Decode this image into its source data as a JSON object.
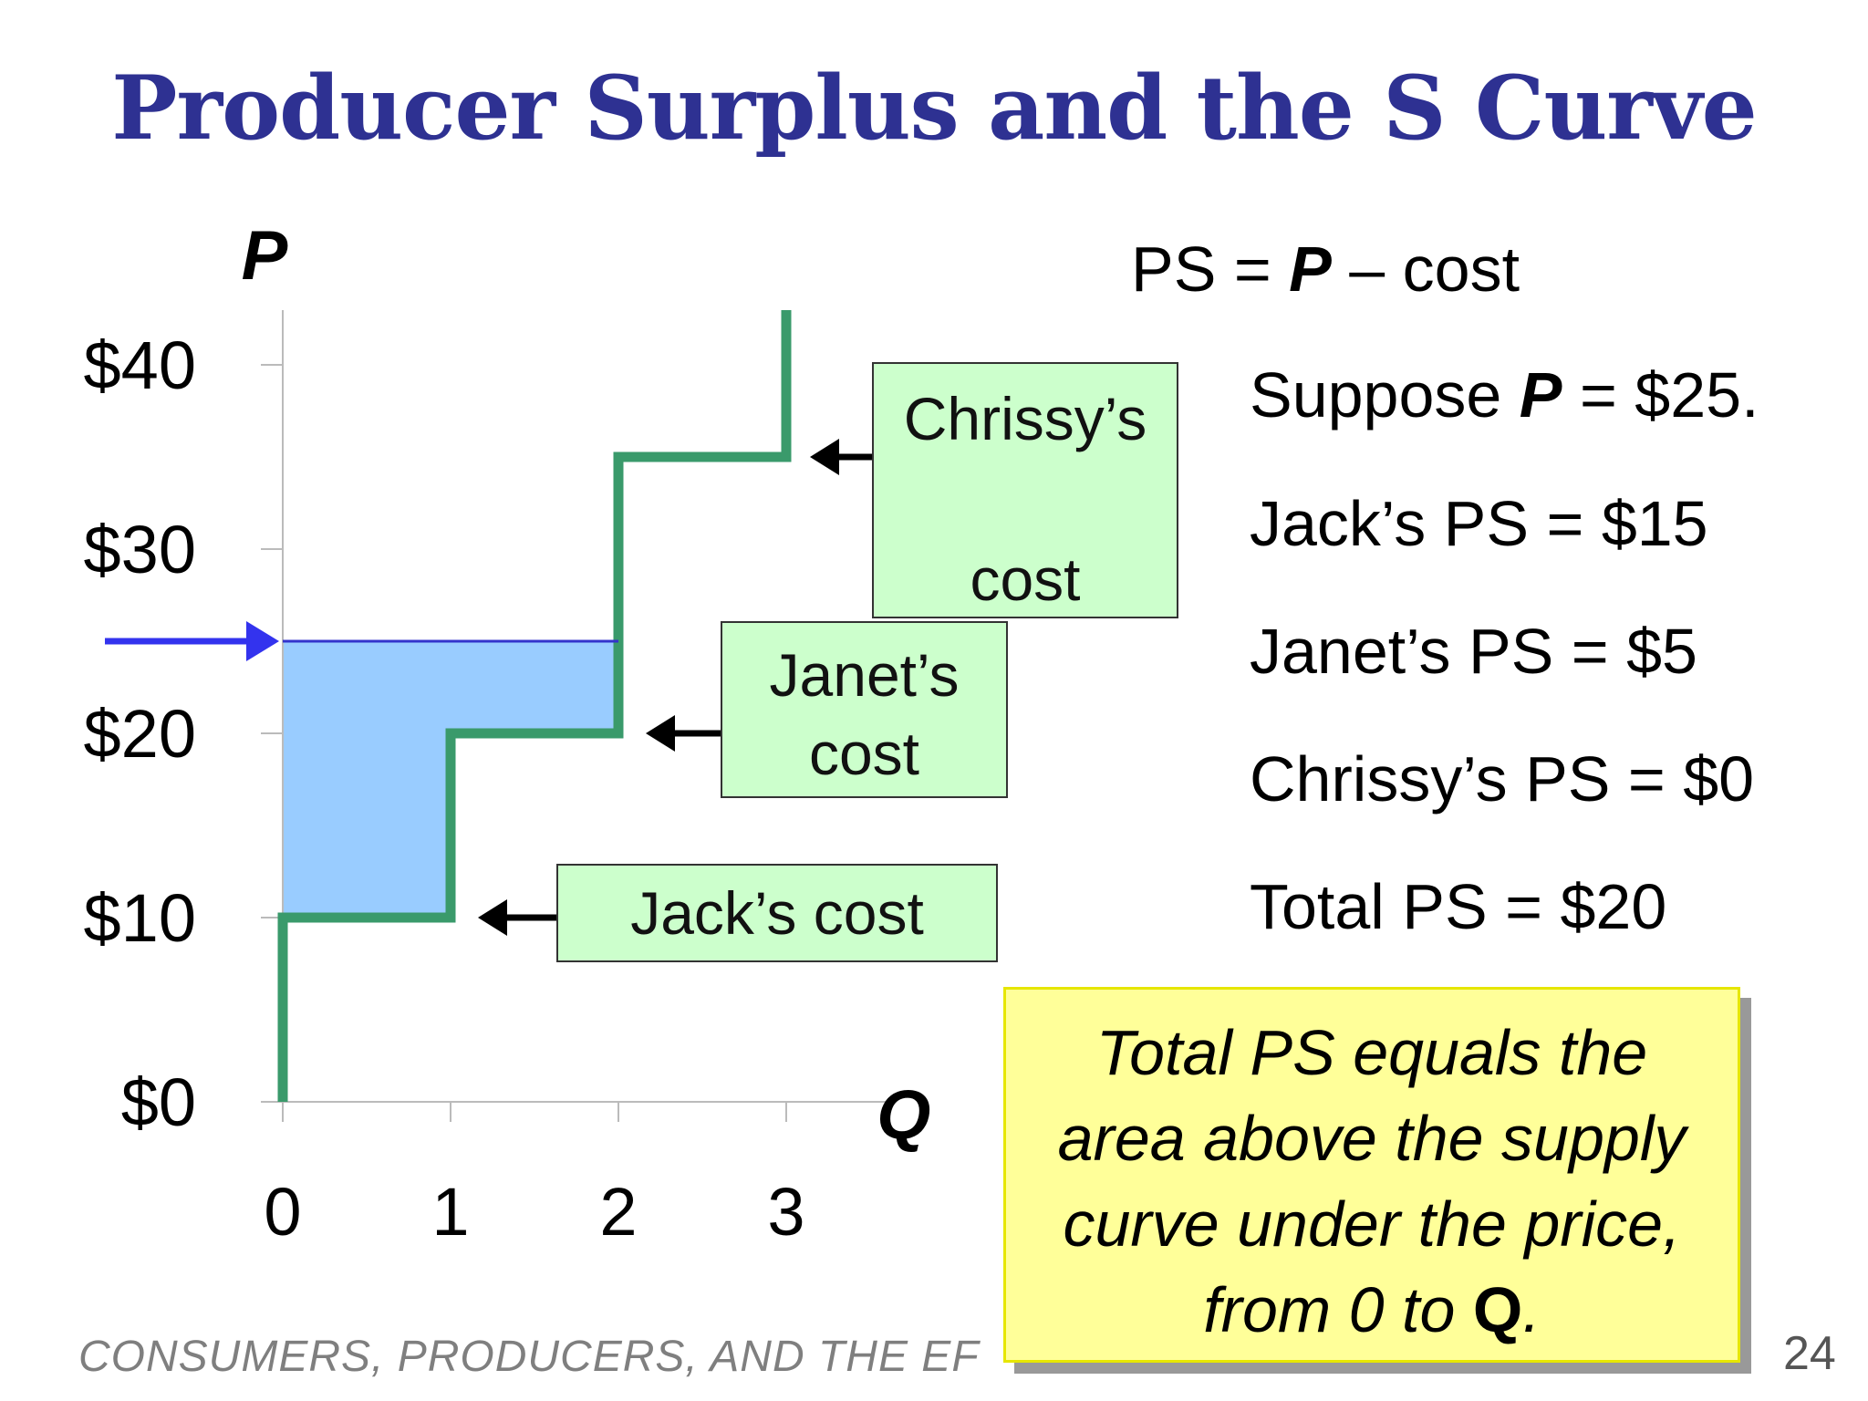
{
  "slide": {
    "title": "Producer Surplus and the S Curve",
    "footer": "CONSUMERS, PRODUCERS, AND THE EF",
    "page_number": "24"
  },
  "labels": {
    "jack_cost": "Jack’s cost",
    "janet_cost_line1": "Janet’s",
    "janet_cost_line2": "cost",
    "chrissy_cost_line1": "Chrissy’s",
    "chrissy_cost_line2": "cost"
  },
  "notes": {
    "formula_pre": "PS = ",
    "formula_p": "P",
    "formula_post": " – cost",
    "suppose_pre": "Suppose ",
    "suppose_p": "P",
    "suppose_post": " = $25.",
    "jack_ps": "Jack’s PS = $15",
    "janet_ps": "Janet’s PS = $5",
    "chrissy_ps": "Chrissy’s PS = $0",
    "total_ps": "Total PS = $20"
  },
  "callout": {
    "line1": "Total PS equals the",
    "line2": "area above the supply",
    "line3": "curve under the price,",
    "line4_pre": "from 0 to ",
    "line4_q": "Q",
    "line4_post": "."
  },
  "colors": {
    "supply": "#3a9a6b",
    "surplus_fill": "#99ccff",
    "price_line": "#3333cc",
    "price_arrow": "#3333ee",
    "axis": "#bbbbbb",
    "title": "#2e3192"
  },
  "chart_data": {
    "type": "area",
    "xlabel": "Q",
    "ylabel": "P",
    "xlim": [
      0,
      3
    ],
    "ylim": [
      0,
      40
    ],
    "x_ticks": [
      0,
      1,
      2,
      3
    ],
    "x_tick_labels": [
      "0",
      "1",
      "2",
      "3"
    ],
    "y_ticks": [
      0,
      10,
      20,
      30,
      40
    ],
    "y_tick_labels": [
      "$0",
      "$10",
      "$20",
      "$30",
      "$40"
    ],
    "price": 25,
    "supply_steps": [
      {
        "q_from": 0,
        "q_to": 1,
        "cost": 10,
        "seller": "Jack"
      },
      {
        "q_from": 1,
        "q_to": 2,
        "cost": 20,
        "seller": "Janet"
      },
      {
        "q_from": 2,
        "q_to": 3,
        "cost": 35,
        "seller": "Chrissy"
      }
    ],
    "producer_surplus": [
      {
        "seller": "Jack",
        "value": 15
      },
      {
        "seller": "Janet",
        "value": 5
      },
      {
        "seller": "Chrissy",
        "value": 0
      }
    ],
    "total_producer_surplus": 20
  }
}
